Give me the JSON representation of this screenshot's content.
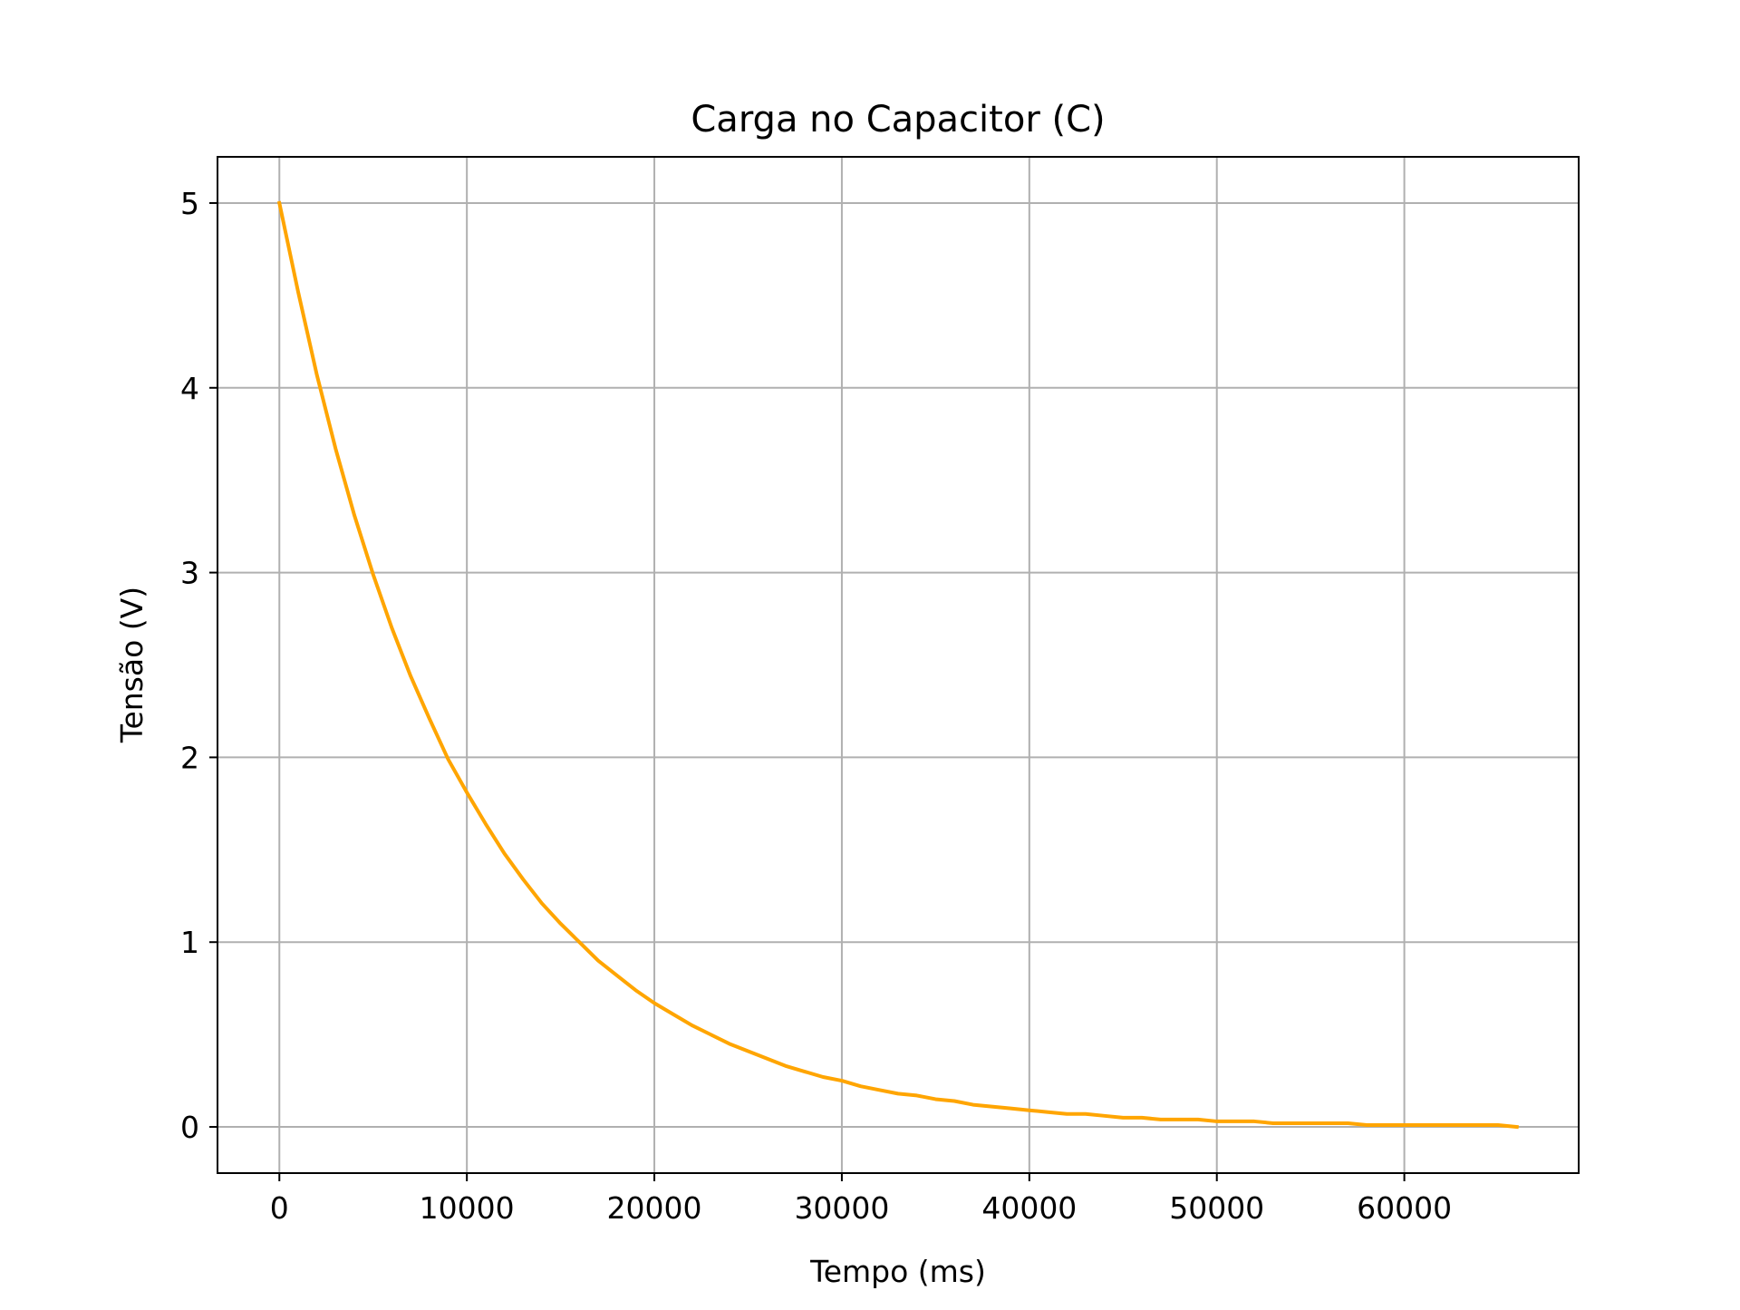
{
  "chart_data": {
    "type": "line",
    "title": "Carga no Capacitor (C)",
    "xlabel": "Tempo (ms)",
    "ylabel": "Tensão (V)",
    "xlim": [
      -3300,
      69300
    ],
    "ylim": [
      -0.25,
      5.25
    ],
    "xticks": [
      0,
      10000,
      20000,
      30000,
      40000,
      50000,
      60000
    ],
    "xtick_labels": [
      "0",
      "10000",
      "20000",
      "30000",
      "40000",
      "50000",
      "60000"
    ],
    "yticks": [
      0,
      1,
      2,
      3,
      4,
      5
    ],
    "ytick_labels": [
      "0",
      "1",
      "2",
      "3",
      "4",
      "5"
    ],
    "grid": true,
    "legend": "none",
    "series": [
      {
        "color": "#ffa500",
        "x": [
          0,
          1000,
          2000,
          3000,
          4000,
          5000,
          6000,
          7000,
          8000,
          9000,
          10000,
          11000,
          12000,
          13000,
          14000,
          15000,
          16000,
          17000,
          18000,
          19000,
          20000,
          21000,
          22000,
          23000,
          24000,
          25000,
          26000,
          27000,
          28000,
          29000,
          30000,
          31000,
          32000,
          33000,
          34000,
          35000,
          36000,
          37000,
          38000,
          39000,
          40000,
          41000,
          42000,
          43000,
          44000,
          45000,
          46000,
          47000,
          48000,
          49000,
          50000,
          51000,
          52000,
          53000,
          54000,
          55000,
          56000,
          57000,
          58000,
          59000,
          60000,
          61000,
          62000,
          63000,
          64000,
          65000,
          66000
        ],
        "y": [
          5.0,
          4.52,
          4.07,
          3.67,
          3.31,
          2.99,
          2.7,
          2.44,
          2.21,
          1.99,
          1.81,
          1.64,
          1.48,
          1.34,
          1.21,
          1.1,
          1.0,
          0.9,
          0.82,
          0.74,
          0.67,
          0.61,
          0.55,
          0.5,
          0.45,
          0.41,
          0.37,
          0.33,
          0.3,
          0.27,
          0.25,
          0.22,
          0.2,
          0.18,
          0.17,
          0.15,
          0.14,
          0.12,
          0.11,
          0.1,
          0.09,
          0.08,
          0.07,
          0.07,
          0.06,
          0.05,
          0.05,
          0.04,
          0.04,
          0.04,
          0.03,
          0.03,
          0.03,
          0.02,
          0.02,
          0.02,
          0.02,
          0.02,
          0.01,
          0.01,
          0.01,
          0.01,
          0.01,
          0.01,
          0.01,
          0.01,
          0.0
        ]
      }
    ]
  }
}
